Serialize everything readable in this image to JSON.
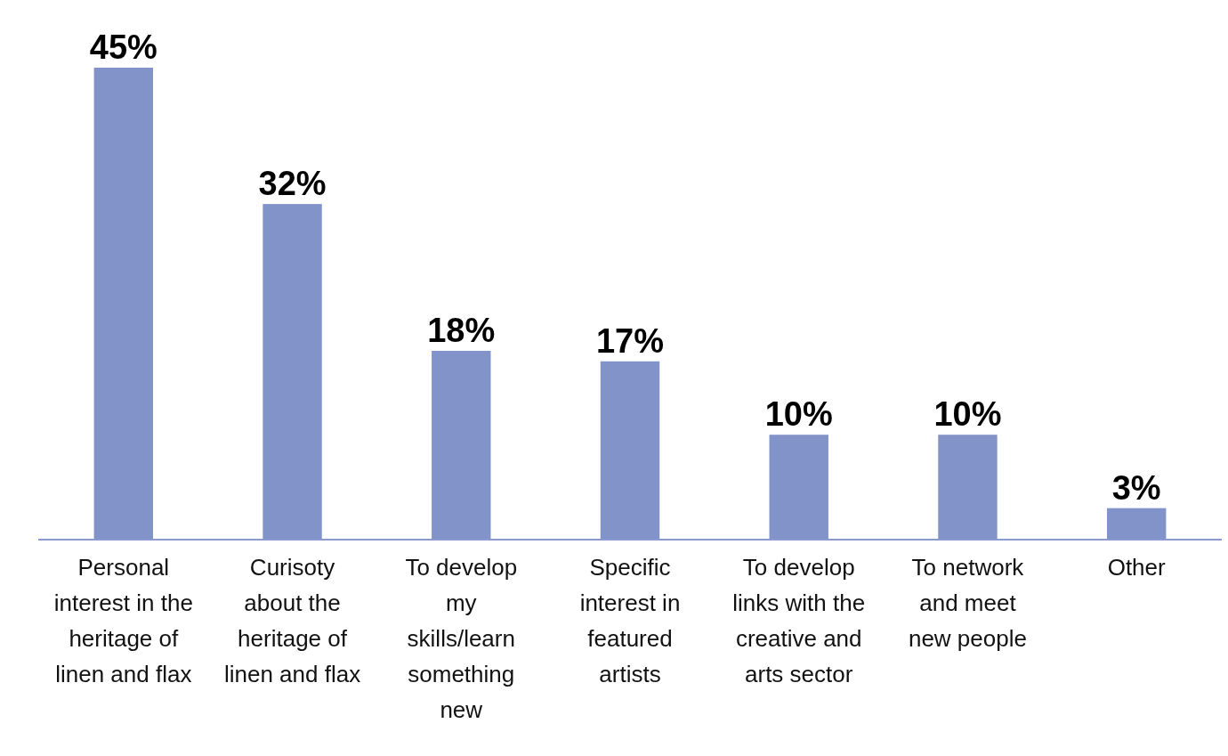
{
  "chart_data": {
    "type": "bar",
    "categories": [
      "Personal interest in the heritage of linen and flax",
      "Curisoty about the heritage of linen and flax",
      "To develop my skills/learn something new",
      "Specific interest in featured artists",
      "To develop links with the creative and arts sector",
      "To network and meet new people",
      "Other"
    ],
    "values": [
      45,
      32,
      18,
      17,
      10,
      10,
      3
    ],
    "value_labels": [
      "45%",
      "32%",
      "18%",
      "17%",
      "10%",
      "10%",
      "3%"
    ],
    "color": "#8293c9"
  }
}
